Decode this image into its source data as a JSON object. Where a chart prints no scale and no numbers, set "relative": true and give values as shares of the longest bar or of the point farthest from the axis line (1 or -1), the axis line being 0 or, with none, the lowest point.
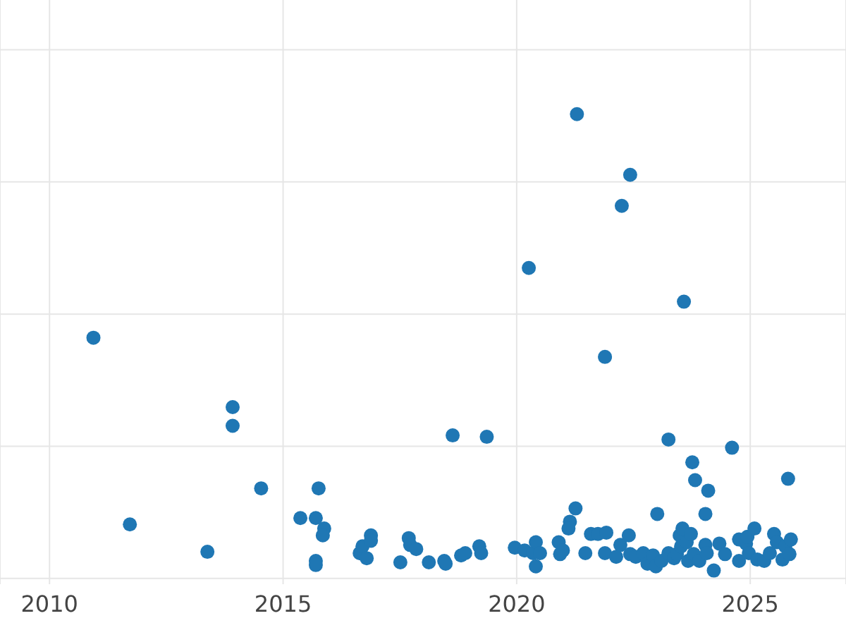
{
  "chart_data": {
    "type": "scatter",
    "relative": true,
    "color": "#1f77b4",
    "marker": "circle",
    "grid": true,
    "tick_labels": "x",
    "xlim": [
      2008.94,
      2027.05
    ],
    "xticks": [
      2010,
      2015,
      2020,
      2025
    ],
    "x": [
      2010.94,
      2011.72,
      2013.38,
      2013.92,
      2013.92,
      2014.53,
      2015.37,
      2015.7,
      2015.76,
      2015.88,
      2015.85,
      2015.7,
      2015.7,
      2016.64,
      2016.7,
      2016.79,
      2016.88,
      2016.88,
      2017.51,
      2017.69,
      2017.72,
      2017.85,
      2018.12,
      2018.45,
      2018.48,
      2018.63,
      2018.81,
      2018.9,
      2019.2,
      2019.24,
      2019.36,
      2019.96,
      2020.17,
      2020.26,
      2020.35,
      2020.41,
      2020.41,
      2020.5,
      2020.9,
      2020.93,
      2020.99,
      2021.14,
      2021.11,
      2021.26,
      2021.29,
      2021.47,
      2021.59,
      2021.74,
      2021.89,
      2021.92,
      2021.89,
      2022.13,
      2022.22,
      2022.25,
      2022.4,
      2022.43,
      2022.43,
      2022.55,
      2022.71,
      2022.8,
      2022.92,
      2023.01,
      2022.98,
      2023.1,
      2023.25,
      2023.25,
      2023.37,
      2023.43,
      2023.49,
      2023.52,
      2023.55,
      2023.58,
      2023.64,
      2023.67,
      2023.73,
      2023.76,
      2023.82,
      2023.79,
      2023.91,
      2024.04,
      2024.04,
      2024.1,
      2024.07,
      2024.22,
      2024.34,
      2024.46,
      2024.61,
      2024.76,
      2024.76,
      2024.91,
      2024.94,
      2024.97,
      2025.09,
      2025.15,
      2025.3,
      2025.42,
      2025.51,
      2025.57,
      2025.69,
      2025.75,
      2025.81,
      2025.84,
      2025.87
    ],
    "values": [
      0.51,
      0.101,
      0.041,
      0.358,
      0.317,
      0.18,
      0.115,
      0.115,
      0.18,
      0.092,
      0.077,
      0.021,
      0.012,
      0.038,
      0.053,
      0.027,
      0.077,
      0.065,
      0.018,
      0.071,
      0.056,
      0.047,
      0.018,
      0.021,
      0.015,
      0.296,
      0.033,
      0.038,
      0.053,
      0.038,
      0.293,
      0.05,
      0.044,
      0.663,
      0.038,
      0.062,
      0.009,
      0.038,
      0.062,
      0.036,
      0.044,
      0.107,
      0.092,
      0.136,
      1.0,
      0.038,
      0.08,
      0.08,
      0.468,
      0.083,
      0.038,
      0.03,
      0.056,
      0.799,
      0.077,
      0.867,
      0.036,
      0.03,
      0.038,
      0.015,
      0.033,
      0.124,
      0.009,
      0.021,
      0.287,
      0.038,
      0.027,
      0.036,
      0.077,
      0.053,
      0.092,
      0.589,
      0.062,
      0.021,
      0.08,
      0.237,
      0.198,
      0.036,
      0.021,
      0.124,
      0.056,
      0.175,
      0.038,
      0.0,
      0.059,
      0.036,
      0.269,
      0.068,
      0.021,
      0.059,
      0.074,
      0.038,
      0.092,
      0.024,
      0.021,
      0.038,
      0.08,
      0.062,
      0.024,
      0.053,
      0.201,
      0.036,
      0.068
    ]
  }
}
